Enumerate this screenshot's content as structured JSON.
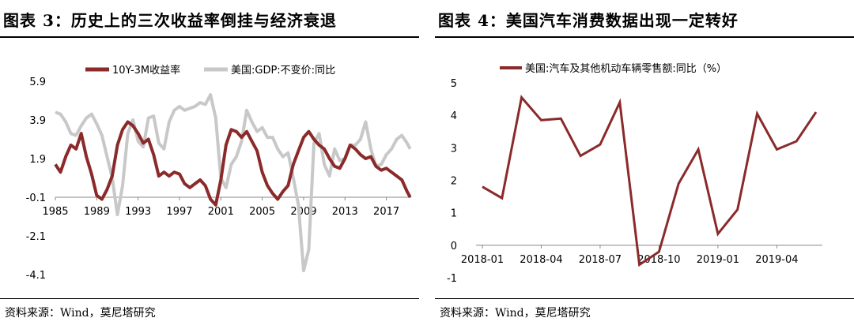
{
  "panels": {
    "left": {
      "title": "图表 3：历史上的三次收益率倒挂与经济衰退",
      "source": "资料来源：Wind，莫尼塔研究"
    },
    "right": {
      "title": "图表 4：美国汽车消费数据出现一定转好",
      "source": "资料来源：Wind，莫尼塔研究"
    }
  },
  "colors": {
    "red": "#8b2a2a",
    "gray": "#c8c8c8"
  },
  "chart_data": [
    {
      "type": "line",
      "title": "",
      "xlabel": "",
      "ylabel": "",
      "x_ticks": [
        "1985",
        "1989",
        "1993",
        "1997",
        "2001",
        "2005",
        "2009",
        "2013",
        "2017"
      ],
      "y_ticks": [
        "5.9",
        "3.9",
        "1.9",
        "-0.1",
        "-2.1",
        "-4.1"
      ],
      "xlim": [
        1985,
        2019.4
      ],
      "ylim": [
        -4.1,
        5.9
      ],
      "legend": "top",
      "series": [
        {
          "name": "10Y-3M收益率",
          "color": "#8b2a2a",
          "x": [
            1985,
            1985.5,
            1986,
            1986.5,
            1987,
            1987.5,
            1988,
            1988.5,
            1989,
            1989.5,
            1990,
            1990.5,
            1991,
            1991.5,
            1992,
            1992.5,
            1993,
            1993.5,
            1994,
            1994.5,
            1995,
            1995.5,
            1996,
            1996.5,
            1997,
            1997.5,
            1998,
            1998.5,
            1999,
            1999.5,
            2000,
            2000.5,
            2001,
            2001.5,
            2002,
            2002.5,
            2003,
            2003.5,
            2004,
            2004.5,
            2005,
            2005.5,
            2006,
            2006.5,
            2007,
            2007.5,
            2008,
            2008.5,
            2009,
            2009.5,
            2010,
            2010.5,
            2011,
            2011.5,
            2012,
            2012.5,
            2013,
            2013.5,
            2014,
            2014.5,
            2015,
            2015.5,
            2016,
            2016.5,
            2017,
            2017.5,
            2018,
            2018.5,
            2019,
            2019.3
          ],
          "values": [
            1.6,
            1.2,
            2.0,
            2.6,
            2.4,
            3.2,
            2.0,
            1.1,
            0.0,
            -0.2,
            0.3,
            1.0,
            2.6,
            3.4,
            3.8,
            3.6,
            3.2,
            2.7,
            2.9,
            2.1,
            1.0,
            1.2,
            1.0,
            1.2,
            1.1,
            0.6,
            0.4,
            0.6,
            0.8,
            0.5,
            -0.2,
            -0.5,
            0.8,
            2.6,
            3.4,
            3.3,
            3.0,
            3.3,
            2.8,
            2.3,
            1.2,
            0.5,
            0.1,
            -0.2,
            0.2,
            0.5,
            1.6,
            2.3,
            3.0,
            3.3,
            2.9,
            2.6,
            2.4,
            1.9,
            1.5,
            1.4,
            1.9,
            2.6,
            2.4,
            2.1,
            1.9,
            2.0,
            1.5,
            1.3,
            1.4,
            1.2,
            1.0,
            0.8,
            0.2,
            -0.1
          ]
        },
        {
          "name": "美国:GDP:不变价:同比",
          "color": "#c8c8c8",
          "x": [
            1985,
            1985.5,
            1986,
            1986.5,
            1987,
            1987.5,
            1988,
            1988.5,
            1989,
            1989.5,
            1990,
            1990.5,
            1991,
            1991.5,
            1992,
            1992.5,
            1993,
            1993.5,
            1994,
            1994.5,
            1995,
            1995.5,
            1996,
            1996.5,
            1997,
            1997.5,
            1998,
            1998.5,
            1999,
            1999.5,
            2000,
            2000.5,
            2001,
            2001.5,
            2002,
            2002.5,
            2003,
            2003.5,
            2004,
            2004.5,
            2005,
            2005.5,
            2006,
            2006.5,
            2007,
            2007.5,
            2008,
            2008.5,
            2009,
            2009.5,
            2010,
            2010.5,
            2011,
            2011.5,
            2012,
            2012.5,
            2013,
            2013.5,
            2014,
            2014.5,
            2015,
            2015.5,
            2016,
            2016.5,
            2017,
            2017.5,
            2018,
            2018.5,
            2019,
            2019.3
          ],
          "values": [
            4.3,
            4.2,
            3.8,
            3.2,
            3.1,
            3.6,
            4.0,
            4.2,
            3.7,
            3.1,
            2.0,
            0.9,
            -1.0,
            0.5,
            3.2,
            3.9,
            2.8,
            2.5,
            4.0,
            4.1,
            2.7,
            2.4,
            3.8,
            4.4,
            4.6,
            4.4,
            4.5,
            4.6,
            4.8,
            4.7,
            5.2,
            4.0,
            0.9,
            0.4,
            1.6,
            2.0,
            2.8,
            4.4,
            3.8,
            3.3,
            3.5,
            3.0,
            3.0,
            2.4,
            2.0,
            2.2,
            0.9,
            -0.5,
            -3.9,
            -2.8,
            2.7,
            3.2,
            1.6,
            1.0,
            2.4,
            1.8,
            1.9,
            2.6,
            2.6,
            2.9,
            3.8,
            2.4,
            1.5,
            1.6,
            2.1,
            2.4,
            2.9,
            3.1,
            2.7,
            2.4
          ]
        }
      ]
    },
    {
      "type": "line",
      "title": "",
      "xlabel": "",
      "ylabel": "",
      "x_ticks": [
        "2018-01",
        "2018-04",
        "2018-07",
        "2018-10",
        "2019-01",
        "2019-04"
      ],
      "y_ticks": [
        "5",
        "4",
        "3",
        "2",
        "1",
        "0",
        "-1"
      ],
      "ylim": [
        -1,
        5
      ],
      "legend": "top",
      "series": [
        {
          "name": "美国:汽车及其他机动车辆零售额:同比（%）",
          "color": "#8b2a2a",
          "x": [
            "2018-01",
            "2018-02",
            "2018-03",
            "2018-04",
            "2018-05",
            "2018-06",
            "2018-07",
            "2018-08",
            "2018-09",
            "2018-10",
            "2018-11",
            "2018-12",
            "2019-01",
            "2019-02",
            "2019-03",
            "2019-04",
            "2019-05",
            "2019-06"
          ],
          "values": [
            1.8,
            1.45,
            4.55,
            3.85,
            3.9,
            2.75,
            3.1,
            4.4,
            -0.6,
            -0.2,
            1.9,
            2.95,
            0.35,
            1.1,
            4.05,
            2.95,
            3.2,
            4.1
          ]
        }
      ]
    }
  ]
}
